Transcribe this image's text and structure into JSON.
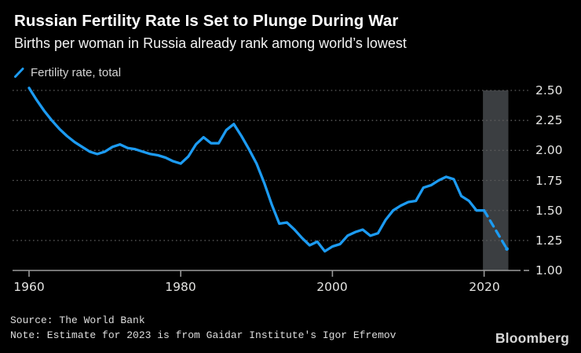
{
  "header": {
    "title": "Russian Fertility Rate Is Set to Plunge During War",
    "subtitle": "Births per woman in Russia already rank among world’s lowest"
  },
  "legend": {
    "label": "Fertility rate, total"
  },
  "colors": {
    "background": "#000000",
    "line": "#1c9bf2",
    "grid": "#5c5c5c",
    "axis": "#9a9a9a",
    "band": "#3b3e41",
    "tick_label": "#e4e4e2"
  },
  "chart_data": {
    "type": "line",
    "title": "Russian Fertility Rate Is Set to Plunge During War",
    "subtitle": "Births per woman in Russia already rank among world’s lowest",
    "xlabel": "",
    "ylabel": "",
    "xlim": [
      1958,
      2024.5
    ],
    "ylim": [
      1.0,
      2.5
    ],
    "grid": "dotted-horizontal",
    "legend_position": "top-left",
    "x_ticks": [
      1960,
      1980,
      2000,
      2020
    ],
    "y_ticks": [
      2.5,
      2.25,
      2.0,
      1.75,
      1.5,
      1.25,
      1.0
    ],
    "y_tick_labels": [
      "2.50",
      "2.25",
      "2.00",
      "1.75",
      "1.50",
      "1.25",
      "1.00"
    ],
    "highlight_band": {
      "x_start": 2020,
      "x_end": 2023.2
    },
    "series": [
      {
        "name": "Fertility rate, total",
        "style": "solid",
        "points": [
          [
            1960,
            2.52
          ],
          [
            1961,
            2.42
          ],
          [
            1962,
            2.33
          ],
          [
            1963,
            2.25
          ],
          [
            1964,
            2.18
          ],
          [
            1965,
            2.12
          ],
          [
            1966,
            2.07
          ],
          [
            1967,
            2.03
          ],
          [
            1968,
            1.99
          ],
          [
            1969,
            1.97
          ],
          [
            1970,
            1.99
          ],
          [
            1971,
            2.03
          ],
          [
            1972,
            2.05
          ],
          [
            1973,
            2.02
          ],
          [
            1974,
            2.01
          ],
          [
            1975,
            1.99
          ],
          [
            1976,
            1.97
          ],
          [
            1977,
            1.96
          ],
          [
            1978,
            1.94
          ],
          [
            1979,
            1.91
          ],
          [
            1980,
            1.89
          ],
          [
            1981,
            1.95
          ],
          [
            1982,
            2.05
          ],
          [
            1983,
            2.11
          ],
          [
            1984,
            2.06
          ],
          [
            1985,
            2.06
          ],
          [
            1986,
            2.17
          ],
          [
            1987,
            2.22
          ],
          [
            1988,
            2.12
          ],
          [
            1989,
            2.01
          ],
          [
            1990,
            1.89
          ],
          [
            1991,
            1.73
          ],
          [
            1992,
            1.55
          ],
          [
            1993,
            1.39
          ],
          [
            1994,
            1.4
          ],
          [
            1995,
            1.34
          ],
          [
            1996,
            1.27
          ],
          [
            1997,
            1.21
          ],
          [
            1998,
            1.24
          ],
          [
            1999,
            1.16
          ],
          [
            2000,
            1.2
          ],
          [
            2001,
            1.22
          ],
          [
            2002,
            1.29
          ],
          [
            2003,
            1.32
          ],
          [
            2004,
            1.34
          ],
          [
            2005,
            1.29
          ],
          [
            2006,
            1.31
          ],
          [
            2007,
            1.42
          ],
          [
            2008,
            1.5
          ],
          [
            2009,
            1.54
          ],
          [
            2010,
            1.57
          ],
          [
            2011,
            1.58
          ],
          [
            2012,
            1.69
          ],
          [
            2013,
            1.71
          ],
          [
            2014,
            1.75
          ],
          [
            2015,
            1.78
          ],
          [
            2016,
            1.76
          ],
          [
            2017,
            1.62
          ],
          [
            2018,
            1.58
          ],
          [
            2019,
            1.5
          ],
          [
            2020,
            1.5
          ]
        ]
      },
      {
        "name": "Estimate (2023, Gaidar Institute)",
        "style": "dashed",
        "points": [
          [
            2020,
            1.5
          ],
          [
            2023,
            1.18
          ]
        ]
      }
    ]
  },
  "footer": {
    "source": "Source: The World Bank",
    "note": "Note: Estimate for 2023 is from Gaidar Institute's Igor Efremov",
    "brand": "Bloomberg"
  }
}
